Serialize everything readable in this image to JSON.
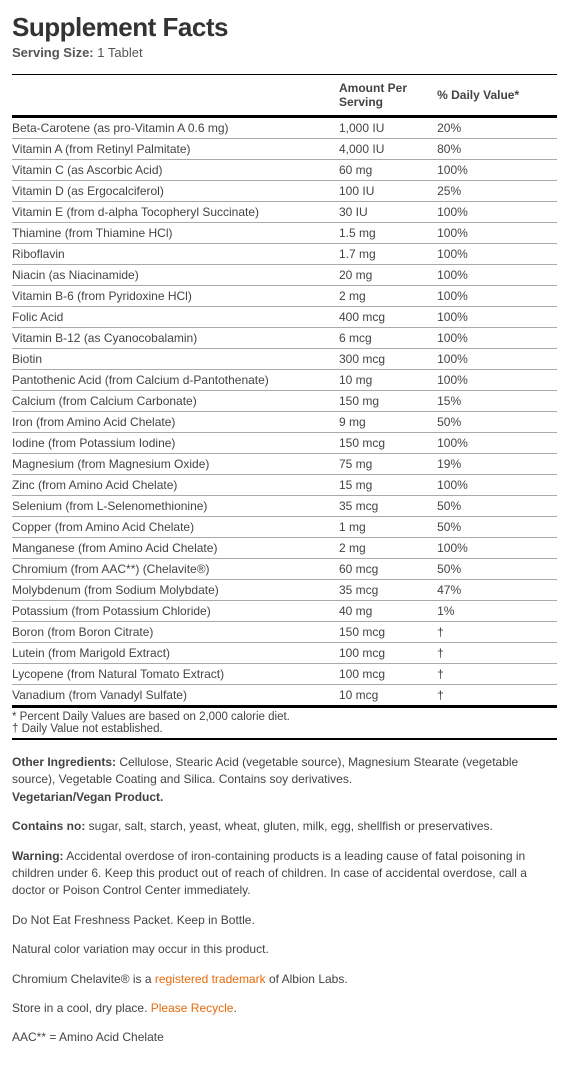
{
  "title": "Supplement Facts",
  "serving_label": "Serving Size:",
  "serving_value": "1 Tablet",
  "headers": {
    "name": "",
    "amount": "Amount Per Serving",
    "dv": "% Daily Value*"
  },
  "rows": [
    {
      "name": "Beta-Carotene (as pro-Vitamin A 0.6 mg)",
      "amount": "1,000 IU",
      "dv": "20%"
    },
    {
      "name": "Vitamin A (from Retinyl Palmitate)",
      "amount": "4,000 IU",
      "dv": "80%"
    },
    {
      "name": "Vitamin C (as Ascorbic Acid)",
      "amount": "60 mg",
      "dv": "100%"
    },
    {
      "name": "Vitamin D (as Ergocalciferol)",
      "amount": "100 IU",
      "dv": "25%"
    },
    {
      "name": "Vitamin E (from d-alpha Tocopheryl Succinate)",
      "amount": "30 IU",
      "dv": "100%"
    },
    {
      "name": "Thiamine (from Thiamine HCl)",
      "amount": "1.5 mg",
      "dv": "100%"
    },
    {
      "name": "Riboflavin",
      "amount": "1.7 mg",
      "dv": "100%"
    },
    {
      "name": "Niacin (as Niacinamide)",
      "amount": "20 mg",
      "dv": "100%"
    },
    {
      "name": "Vitamin B-6 (from Pyridoxine HCl)",
      "amount": "2 mg",
      "dv": "100%"
    },
    {
      "name": "Folic Acid",
      "amount": "400 mcg",
      "dv": "100%"
    },
    {
      "name": "Vitamin B-12 (as Cyanocobalamin)",
      "amount": "6 mcg",
      "dv": "100%"
    },
    {
      "name": "Biotin",
      "amount": "300 mcg",
      "dv": "100%"
    },
    {
      "name": "Pantothenic Acid (from Calcium d-Pantothenate)",
      "amount": "10 mg",
      "dv": "100%"
    },
    {
      "name": "Calcium (from Calcium Carbonate)",
      "amount": "150 mg",
      "dv": "15%"
    },
    {
      "name": "Iron (from Amino Acid Chelate)",
      "amount": "9 mg",
      "dv": "50%"
    },
    {
      "name": "Iodine (from Potassium Iodine)",
      "amount": "150 mcg",
      "dv": "100%"
    },
    {
      "name": "Magnesium (from Magnesium Oxide)",
      "amount": "75 mg",
      "dv": "19%"
    },
    {
      "name": "Zinc (from Amino Acid Chelate)",
      "amount": "15 mg",
      "dv": "100%"
    },
    {
      "name": "Selenium (from L-Selenomethionine)",
      "amount": "35 mcg",
      "dv": "50%"
    },
    {
      "name": "Copper (from Amino Acid Chelate)",
      "amount": "1 mg",
      "dv": "50%"
    },
    {
      "name": "Manganese (from Amino Acid Chelate)",
      "amount": "2 mg",
      "dv": "100%"
    },
    {
      "name": "Chromium (from AAC**) (Chelavite®)",
      "amount": "60 mcg",
      "dv": "50%"
    },
    {
      "name": "Molybdenum (from Sodium Molybdate)",
      "amount": "35 mcg",
      "dv": "47%"
    },
    {
      "name": "Potassium (from Potassium Chloride)",
      "amount": "40 mg",
      "dv": "1%"
    },
    {
      "name": "Boron (from Boron Citrate)",
      "amount": "150 mcg",
      "dv": "†"
    },
    {
      "name": "Lutein (from Marigold Extract)",
      "amount": "100 mcg",
      "dv": "†"
    },
    {
      "name": "Lycopene (from Natural Tomato Extract)",
      "amount": "100 mcg",
      "dv": "†"
    },
    {
      "name": "Vanadium (from Vanadyl Sulfate)",
      "amount": "10 mcg",
      "dv": "†"
    }
  ],
  "footnote1": "* Percent Daily Values are based on 2,000 calorie diet.",
  "footnote2": "† Daily Value not established.",
  "other": {
    "label": "Other Ingredients:",
    "text": " Cellulose, Stearic Acid (vegetable source), Magnesium Stearate (vegetable source), Vegetable Coating and Silica.  Contains soy derivatives.",
    "veg": "Vegetarian/Vegan Product."
  },
  "contains_no": {
    "label": "Contains no:",
    "text": " sugar, salt, starch, yeast, wheat, gluten, milk, egg, shellfish or preservatives."
  },
  "warning": {
    "label": "Warning:",
    "text": "  Accidental overdose of iron-containing products is a leading cause of fatal poisoning in children under 6.  Keep this product out of reach of children. In case of accidental overdose, call a doctor or Poison Control Center immediately."
  },
  "freshness": "Do Not Eat Freshness Packet.  Keep in Bottle.",
  "colorvar": "Natural color variation may occur in this product.",
  "chelavite_pre": "Chromium Chelavite® is a ",
  "chelavite_link": "registered trademark",
  "chelavite_post": " of Albion Labs.",
  "store_pre": "Store in a cool, dry place.  ",
  "store_link": "Please Recycle",
  "store_post": ".",
  "aac": "AAC** = Amino Acid Chelate"
}
